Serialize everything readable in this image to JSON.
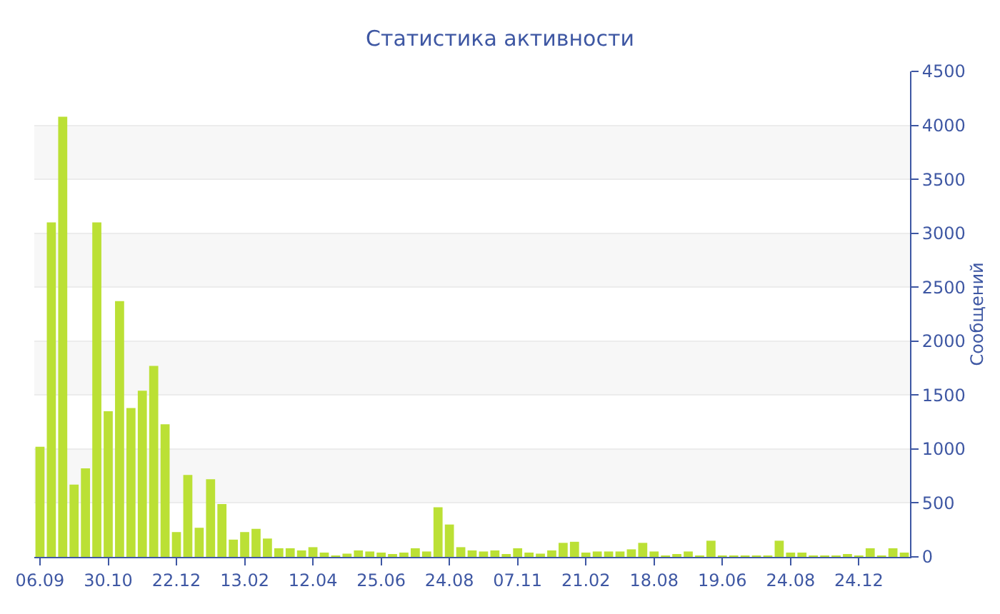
{
  "chart_data": {
    "type": "bar",
    "title": "Статистика активности",
    "ylabel": "Сообщений",
    "categories": [
      "06.09",
      null,
      null,
      null,
      null,
      null,
      "30.10",
      null,
      null,
      null,
      null,
      null,
      "22.12",
      null,
      null,
      null,
      null,
      null,
      "13.02",
      null,
      null,
      null,
      null,
      null,
      "12.04",
      null,
      null,
      null,
      null,
      null,
      "25.06",
      null,
      null,
      null,
      null,
      null,
      "24.08",
      null,
      null,
      null,
      null,
      null,
      "07.11",
      null,
      null,
      null,
      null,
      null,
      "21.02",
      null,
      null,
      null,
      null,
      null,
      "18.08",
      null,
      null,
      null,
      null,
      null,
      "19.06",
      null,
      null,
      null,
      null,
      null,
      "24.08",
      null,
      null,
      null,
      null,
      null,
      "24.12",
      null,
      null,
      null,
      null
    ],
    "values": [
      1020,
      3100,
      4080,
      670,
      820,
      3100,
      1350,
      2370,
      1380,
      1540,
      1770,
      1230,
      230,
      760,
      270,
      720,
      490,
      160,
      230,
      260,
      170,
      80,
      80,
      60,
      90,
      40,
      10,
      30,
      60,
      50,
      40,
      20,
      40,
      80,
      50,
      460,
      300,
      90,
      60,
      50,
      60,
      20,
      80,
      40,
      30,
      60,
      130,
      140,
      40,
      50,
      50,
      50,
      70,
      130,
      50,
      10,
      20,
      50,
      10,
      150,
      10,
      10,
      10,
      10,
      10,
      150,
      40,
      40,
      10,
      10,
      10,
      20,
      10,
      80,
      10,
      80,
      40
    ],
    "color": "#bbe035",
    "ylim": [
      0,
      4500
    ],
    "yticks": [
      0,
      500,
      1000,
      1500,
      2000,
      2500,
      3000,
      3500,
      4000,
      4500
    ],
    "grid": true
  }
}
